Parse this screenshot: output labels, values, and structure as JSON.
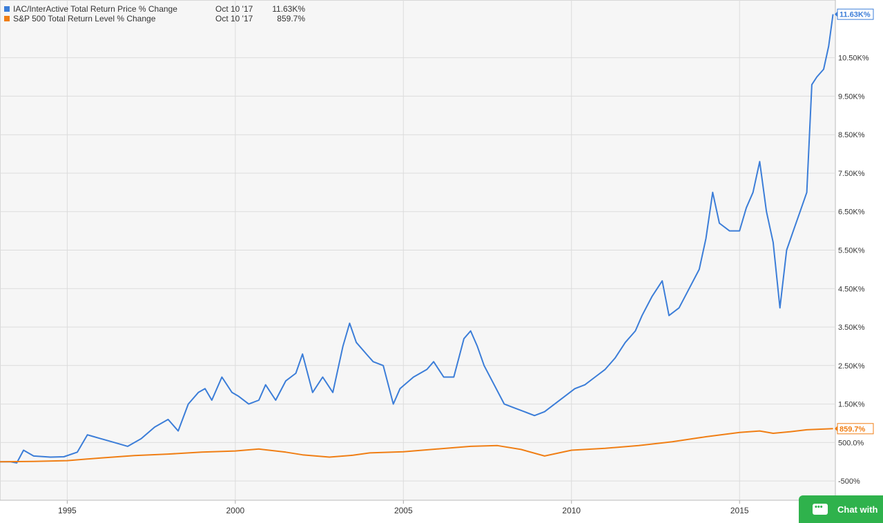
{
  "legend": {
    "items": [
      {
        "name": "IAC/InterActive Total Return Price % Change",
        "date": "Oct 10 '17",
        "value": "11.63K%",
        "color": "#3b7dd8"
      },
      {
        "name": "S&P 500 Total Return Level % Change",
        "date": "Oct 10 '17",
        "value": "859.7%",
        "color": "#f07e14"
      }
    ]
  },
  "chat_widget": {
    "label": "Chat with"
  },
  "chart_data": {
    "type": "line",
    "title": "",
    "xlabel": "",
    "ylabel": "",
    "x_ticks": [
      "1995",
      "2000",
      "2005",
      "2010",
      "2015"
    ],
    "y_ticks": [
      "-500%",
      "500.0%",
      "1.50K%",
      "2.50K%",
      "3.50K%",
      "4.50K%",
      "5.50K%",
      "6.50K%",
      "7.50K%",
      "8.50K%",
      "9.50K%",
      "10.50K%"
    ],
    "ylim": [
      -1000,
      12000
    ],
    "xlim": [
      1993.0,
      2017.85
    ],
    "grid": true,
    "legend_position": "top-left",
    "end_labels": [
      "11.63K%",
      "859.7%"
    ],
    "series": [
      {
        "name": "IAC/InterActive Total Return Price % Change",
        "color": "#3b7dd8",
        "x": [
          1993.0,
          1993.3,
          1993.5,
          1993.7,
          1994.0,
          1994.5,
          1994.9,
          1995.3,
          1995.6,
          1995.8,
          1996.0,
          1996.4,
          1996.8,
          1997.2,
          1997.6,
          1998.0,
          1998.3,
          1998.6,
          1998.9,
          1999.1,
          1999.3,
          1999.6,
          1999.9,
          2000.1,
          2000.4,
          2000.7,
          2000.9,
          2001.2,
          2001.5,
          2001.8,
          2002.0,
          2002.3,
          2002.6,
          2002.9,
          2003.2,
          2003.4,
          2003.6,
          2003.9,
          2004.1,
          2004.4,
          2004.7,
          2004.9,
          2005.3,
          2005.7,
          2005.9,
          2006.2,
          2006.5,
          2006.8,
          2007.0,
          2007.2,
          2007.4,
          2007.7,
          2008.0,
          2008.3,
          2008.6,
          2008.9,
          2009.2,
          2009.5,
          2009.8,
          2010.1,
          2010.4,
          2010.7,
          2011.0,
          2011.3,
          2011.6,
          2011.9,
          2012.1,
          2012.4,
          2012.7,
          2012.9,
          2013.2,
          2013.5,
          2013.8,
          2014.0,
          2014.2,
          2014.4,
          2014.7,
          2015.0,
          2015.2,
          2015.4,
          2015.6,
          2015.8,
          2016.0,
          2016.2,
          2016.4,
          2016.6,
          2016.8,
          2017.0,
          2017.15,
          2017.3,
          2017.5,
          2017.65,
          2017.78
        ],
        "y": [
          0,
          0,
          -30,
          300,
          150,
          120,
          130,
          250,
          700,
          650,
          600,
          500,
          400,
          600,
          900,
          1100,
          800,
          1500,
          1800,
          1900,
          1600,
          2200,
          1800,
          1700,
          1500,
          1600,
          2000,
          1600,
          2100,
          2300,
          2800,
          1800,
          2200,
          1800,
          3000,
          3600,
          3100,
          2800,
          2600,
          2500,
          1500,
          1900,
          2200,
          2400,
          2600,
          2200,
          2200,
          3200,
          3400,
          3000,
          2500,
          2000,
          1500,
          1400,
          1300,
          1200,
          1300,
          1500,
          1700,
          1900,
          2000,
          2200,
          2400,
          2700,
          3100,
          3400,
          3800,
          4300,
          4700,
          3800,
          4000,
          4500,
          5000,
          5800,
          7000,
          6200,
          6000,
          6000,
          6600,
          7000,
          7800,
          6500,
          5700,
          4000,
          5500,
          6000,
          6500,
          7000,
          9800,
          10000,
          10200,
          10800,
          11630
        ]
      },
      {
        "name": "S&P 500 Total Return Level % Change",
        "color": "#f07e14",
        "x": [
          1993.0,
          1994.0,
          1995.0,
          1996.0,
          1997.0,
          1998.0,
          1999.0,
          2000.0,
          2000.7,
          2001.5,
          2002.0,
          2002.8,
          2003.5,
          2004.0,
          2005.0,
          2006.0,
          2007.0,
          2007.8,
          2008.5,
          2009.2,
          2010.0,
          2011.0,
          2012.0,
          2013.0,
          2014.0,
          2015.0,
          2015.6,
          2016.0,
          2016.5,
          2017.0,
          2017.78
        ],
        "y": [
          0,
          10,
          30,
          100,
          160,
          200,
          250,
          280,
          330,
          250,
          180,
          120,
          170,
          230,
          260,
          330,
          400,
          420,
          320,
          150,
          300,
          350,
          420,
          520,
          650,
          760,
          800,
          740,
          780,
          830,
          859.7
        ]
      }
    ]
  }
}
